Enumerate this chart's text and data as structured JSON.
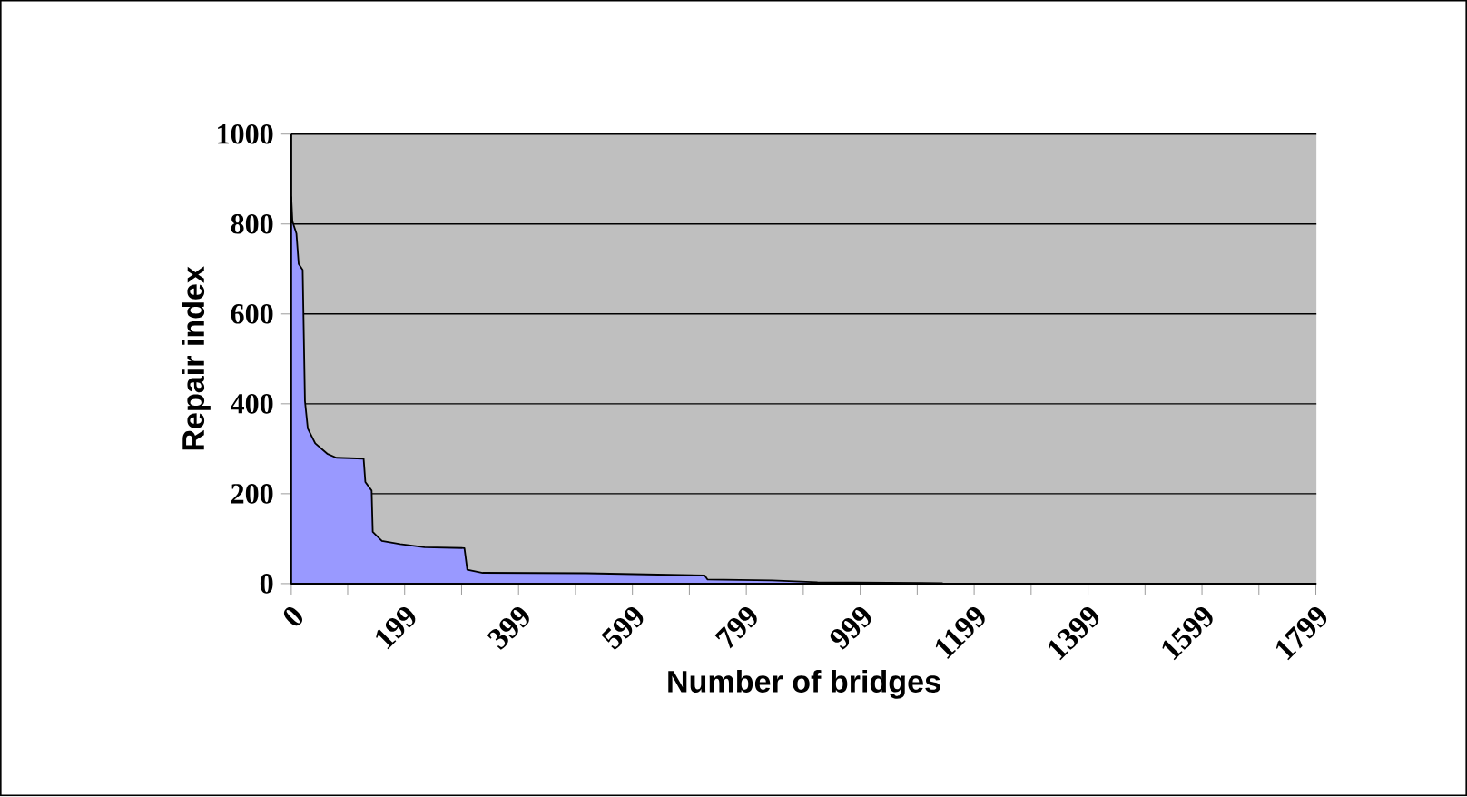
{
  "chart_data": {
    "type": "area",
    "xlabel": "Number of bridges",
    "ylabel": "Repair index",
    "x": [
      0,
      2,
      9,
      13,
      20,
      24,
      29,
      42,
      63,
      79,
      127,
      130,
      141,
      143,
      159,
      191,
      234,
      304,
      309,
      336,
      518,
      726,
      731,
      844,
      924,
      1143
    ],
    "values": [
      860,
      806,
      779,
      711,
      698,
      406,
      345,
      312,
      289,
      280,
      278,
      226,
      207,
      115,
      95,
      88,
      81,
      79,
      31,
      24,
      23,
      18,
      9,
      7,
      3,
      1
    ],
    "color": "#9999ff",
    "xlim": [
      0,
      1800
    ],
    "xticks": [
      0,
      {
        "value": 99,
        "label": null
      },
      199,
      {
        "value": 299,
        "label": null
      },
      399,
      {
        "value": 499,
        "label": null
      },
      599,
      {
        "value": 699,
        "label": null
      },
      799,
      {
        "value": 899,
        "label": null
      },
      999,
      {
        "value": 1099,
        "label": null
      },
      1199,
      {
        "value": 1299,
        "label": null
      },
      1399,
      {
        "value": 1499,
        "label": null
      },
      1599,
      {
        "value": 1699,
        "label": null
      },
      1799
    ],
    "ylim": [
      0,
      1000
    ],
    "yticks": [
      0,
      200,
      400,
      600,
      800,
      1000
    ],
    "grid": "y"
  }
}
